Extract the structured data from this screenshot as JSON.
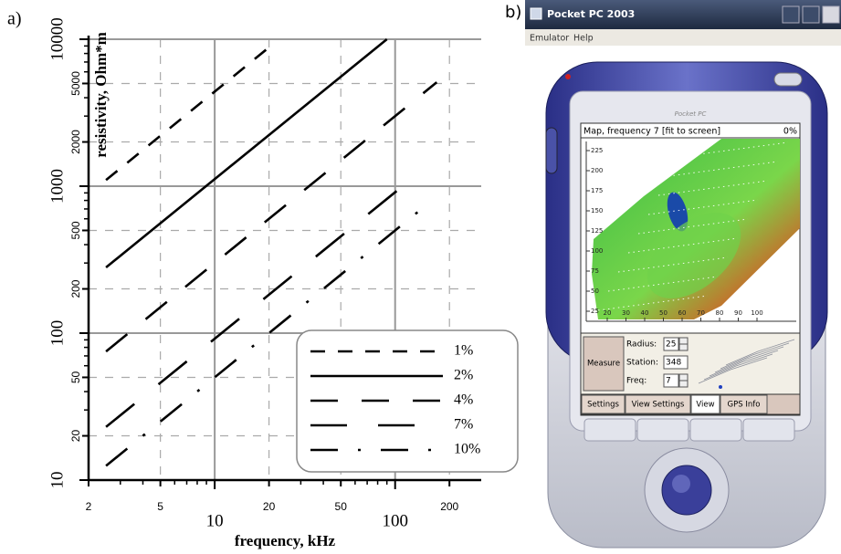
{
  "chart_data": {
    "type": "line",
    "panel_label": "a)",
    "xlabel": "frequency, kHz",
    "ylabel": "resistivity, Ohm*m",
    "xscale": "log",
    "yscale": "log",
    "xlim": [
      2,
      300
    ],
    "ylim": [
      10,
      10000
    ],
    "xticks": [
      2,
      5,
      10,
      20,
      50,
      100,
      200
    ],
    "yticks": [
      10,
      20,
      50,
      100,
      200,
      500,
      1000,
      2000,
      5000,
      10000
    ],
    "xminorticks": [
      3,
      4,
      6,
      7,
      8,
      9,
      30,
      40,
      60,
      70,
      80,
      90
    ],
    "yminorticks": [
      30,
      40,
      60,
      70,
      80,
      90,
      300,
      400,
      600,
      700,
      800,
      900,
      3000,
      4000,
      6000,
      7000,
      8000,
      9000
    ],
    "grid": true,
    "legend": "lower right",
    "series": [
      {
        "name": "1%",
        "color": "#000000",
        "dash": "16 14",
        "x": [
          2.5,
          20
        ],
        "values": [
          1100,
          8800
        ]
      },
      {
        "name": "2%",
        "color": "#000000",
        "dash": "none",
        "x": [
          2.5,
          90
        ],
        "values": [
          280,
          10000
        ]
      },
      {
        "name": "4%",
        "color": "#000000",
        "dash": "30 26",
        "x": [
          2.5,
          170
        ],
        "values": [
          75,
          5100
        ]
      },
      {
        "name": "7%",
        "color": "#000000",
        "dash": "40 34",
        "x": [
          2.5,
          110
        ],
        "values": [
          23,
          1000
        ]
      },
      {
        "name": "10%",
        "color": "#000000",
        "dash": "30 22 3 22",
        "x": [
          2.5,
          160
        ],
        "values": [
          12.5,
          800
        ]
      }
    ]
  },
  "screenshot": {
    "panel_label": "b)",
    "window_title": "Pocket PC 2003",
    "menu": [
      "Emulator",
      "Help"
    ],
    "brand": "Pocket PC",
    "map_title": "Map, frequency 7 [fit to screen]",
    "progress": "0%",
    "map_yticks": [
      225,
      200,
      175,
      150,
      125,
      100,
      75,
      50,
      25
    ],
    "map_xticks": [
      20,
      30,
      40,
      50,
      60,
      70,
      80,
      90,
      100
    ],
    "button": "Measure",
    "fields": [
      {
        "label": "Radius:",
        "value": 25
      },
      {
        "label": "Station:",
        "value": 348
      },
      {
        "label": "Freq:",
        "value": 7
      }
    ],
    "tabs": [
      "Settings",
      "View Settings",
      "View",
      "GPS Info"
    ]
  }
}
